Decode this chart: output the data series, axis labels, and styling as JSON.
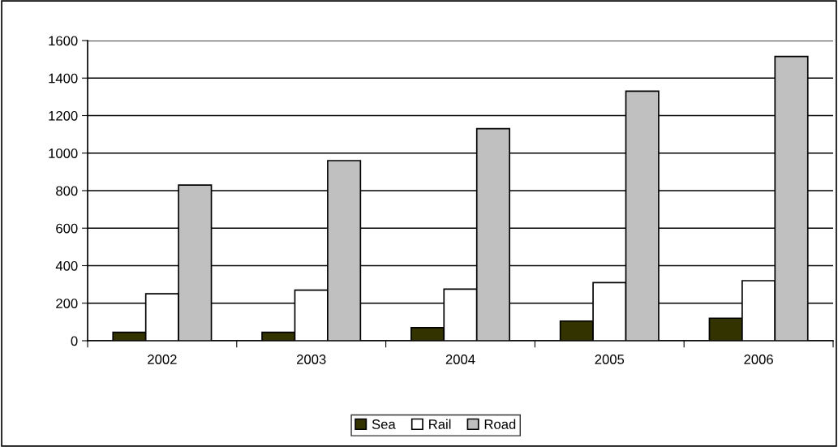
{
  "chart_data": {
    "type": "bar",
    "categories": [
      "2002",
      "2003",
      "2004",
      "2005",
      "2006"
    ],
    "series": [
      {
        "name": "Sea",
        "color": "#333300",
        "values": [
          45,
          45,
          70,
          105,
          120
        ]
      },
      {
        "name": "Rail",
        "color": "#ffffff",
        "values": [
          250,
          270,
          275,
          310,
          320
        ]
      },
      {
        "name": "Road",
        "color": "#c0c0c0",
        "values": [
          830,
          960,
          1130,
          1330,
          1515
        ]
      }
    ],
    "ylim": [
      0,
      1600
    ],
    "yticks": [
      0,
      200,
      400,
      600,
      800,
      1000,
      1200,
      1400,
      1600
    ],
    "grid": "y",
    "legend": "bottom"
  }
}
